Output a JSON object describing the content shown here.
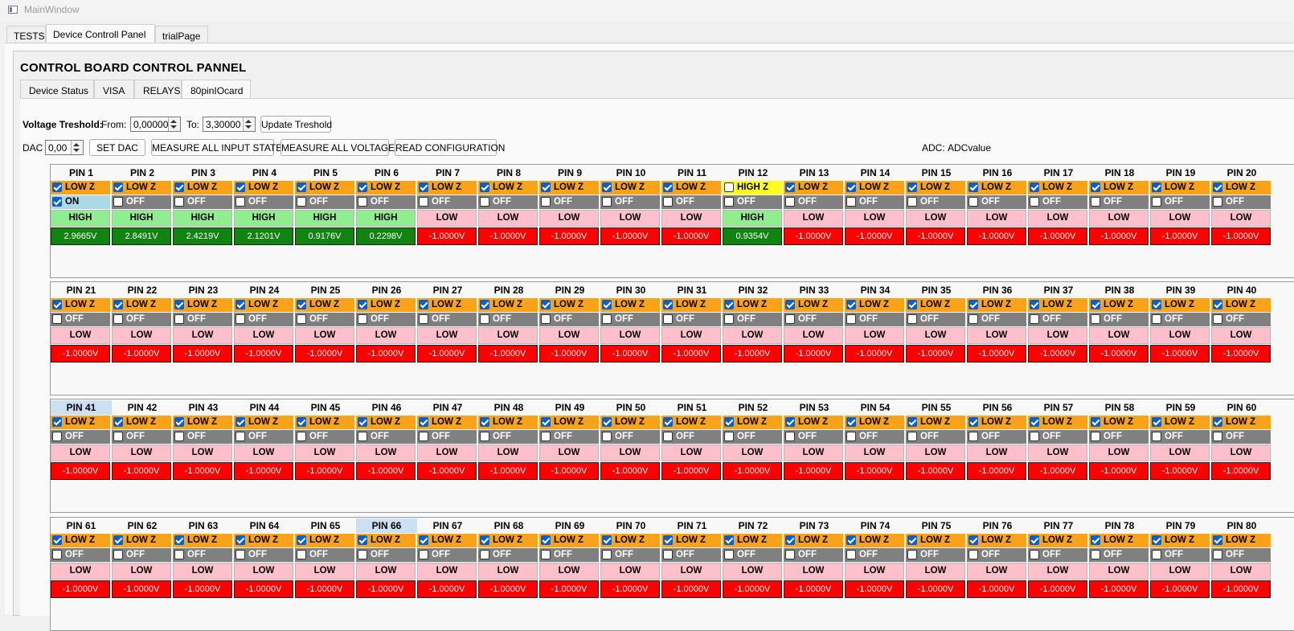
{
  "window": {
    "title": "MainWindow"
  },
  "outer_tabs": [
    {
      "label": "TESTS",
      "active": false
    },
    {
      "label": "Device Controll Panel",
      "active": true
    },
    {
      "label": "trialPage",
      "active": false
    }
  ],
  "panel": {
    "title": "CONTROL BOARD CONTROL PANNEL"
  },
  "inner_tabs": [
    {
      "label": "Device Status",
      "active": false
    },
    {
      "label": "VISA",
      "active": false
    },
    {
      "label": "RELAYS",
      "active": false
    },
    {
      "label": "80pinIOcard",
      "active": true
    }
  ],
  "threshold": {
    "label": "Voltage Treshold:",
    "from_label": "From:",
    "from_value": "0,00000",
    "to_label": "To:",
    "to_value": "3,30000",
    "update_label": "Update Treshold"
  },
  "dac": {
    "label": "DAC",
    "value": "0,00",
    "set_label": "SET DAC",
    "measure_states_label": "MEASURE ALL INPUT STATES",
    "measure_voltages_label": "MEASURE ALL VOLTAGES",
    "read_config_label": "READ CONFIGURATION",
    "adc_label": "ADC:",
    "adc_value": "ADCvalue"
  },
  "pins": [
    {
      "name": "PIN 1",
      "mode": "LOW Z",
      "mode_checked": true,
      "output": "ON",
      "output_checked": true,
      "state": "HIGH",
      "voltage": "2.9665V"
    },
    {
      "name": "PIN 2",
      "mode": "LOW Z",
      "mode_checked": true,
      "output": "OFF",
      "output_checked": false,
      "state": "HIGH",
      "voltage": "2.8491V"
    },
    {
      "name": "PIN 3",
      "mode": "LOW Z",
      "mode_checked": true,
      "output": "OFF",
      "output_checked": false,
      "state": "HIGH",
      "voltage": "2.4219V"
    },
    {
      "name": "PIN 4",
      "mode": "LOW Z",
      "mode_checked": true,
      "output": "OFF",
      "output_checked": false,
      "state": "HIGH",
      "voltage": "2.1201V"
    },
    {
      "name": "PIN 5",
      "mode": "LOW Z",
      "mode_checked": true,
      "output": "OFF",
      "output_checked": false,
      "state": "HIGH",
      "voltage": "0.9176V"
    },
    {
      "name": "PIN 6",
      "mode": "LOW Z",
      "mode_checked": true,
      "output": "OFF",
      "output_checked": false,
      "state": "HIGH",
      "voltage": "0.2298V"
    },
    {
      "name": "PIN 7",
      "mode": "LOW Z",
      "mode_checked": true,
      "output": "OFF",
      "output_checked": false,
      "state": "LOW",
      "voltage": "-1.0000V"
    },
    {
      "name": "PIN 8",
      "mode": "LOW Z",
      "mode_checked": true,
      "output": "OFF",
      "output_checked": false,
      "state": "LOW",
      "voltage": "-1.0000V"
    },
    {
      "name": "PIN 9",
      "mode": "LOW Z",
      "mode_checked": true,
      "output": "OFF",
      "output_checked": false,
      "state": "LOW",
      "voltage": "-1.0000V"
    },
    {
      "name": "PIN 10",
      "mode": "LOW Z",
      "mode_checked": true,
      "output": "OFF",
      "output_checked": false,
      "state": "LOW",
      "voltage": "-1.0000V"
    },
    {
      "name": "PIN 11",
      "mode": "LOW Z",
      "mode_checked": true,
      "output": "OFF",
      "output_checked": false,
      "state": "LOW",
      "voltage": "-1.0000V"
    },
    {
      "name": "PIN 12",
      "mode": "HIGH Z",
      "mode_checked": false,
      "output": "OFF",
      "output_checked": false,
      "state": "HIGH",
      "voltage": "0.9354V"
    },
    {
      "name": "PIN 13",
      "mode": "LOW Z",
      "mode_checked": true,
      "output": "OFF",
      "output_checked": false,
      "state": "LOW",
      "voltage": "-1.0000V"
    },
    {
      "name": "PIN 14",
      "mode": "LOW Z",
      "mode_checked": true,
      "output": "OFF",
      "output_checked": false,
      "state": "LOW",
      "voltage": "-1.0000V"
    },
    {
      "name": "PIN 15",
      "mode": "LOW Z",
      "mode_checked": true,
      "output": "OFF",
      "output_checked": false,
      "state": "LOW",
      "voltage": "-1.0000V"
    },
    {
      "name": "PIN 16",
      "mode": "LOW Z",
      "mode_checked": true,
      "output": "OFF",
      "output_checked": false,
      "state": "LOW",
      "voltage": "-1.0000V"
    },
    {
      "name": "PIN 17",
      "mode": "LOW Z",
      "mode_checked": true,
      "output": "OFF",
      "output_checked": false,
      "state": "LOW",
      "voltage": "-1.0000V"
    },
    {
      "name": "PIN 18",
      "mode": "LOW Z",
      "mode_checked": true,
      "output": "OFF",
      "output_checked": false,
      "state": "LOW",
      "voltage": "-1.0000V"
    },
    {
      "name": "PIN 19",
      "mode": "LOW Z",
      "mode_checked": true,
      "output": "OFF",
      "output_checked": false,
      "state": "LOW",
      "voltage": "-1.0000V"
    },
    {
      "name": "PIN 20",
      "mode": "LOW Z",
      "mode_checked": true,
      "output": "OFF",
      "output_checked": false,
      "state": "LOW",
      "voltage": "-1.0000V"
    },
    {
      "name": "PIN 21",
      "mode": "LOW Z",
      "mode_checked": true,
      "output": "OFF",
      "output_checked": false,
      "state": "LOW",
      "voltage": "-1.0000V"
    },
    {
      "name": "PIN 22",
      "mode": "LOW Z",
      "mode_checked": true,
      "output": "OFF",
      "output_checked": false,
      "state": "LOW",
      "voltage": "-1.0000V"
    },
    {
      "name": "PIN 23",
      "mode": "LOW Z",
      "mode_checked": true,
      "output": "OFF",
      "output_checked": false,
      "state": "LOW",
      "voltage": "-1.0000V"
    },
    {
      "name": "PIN 24",
      "mode": "LOW Z",
      "mode_checked": true,
      "output": "OFF",
      "output_checked": false,
      "state": "LOW",
      "voltage": "-1.0000V"
    },
    {
      "name": "PIN 25",
      "mode": "LOW Z",
      "mode_checked": true,
      "output": "OFF",
      "output_checked": false,
      "state": "LOW",
      "voltage": "-1.0000V"
    },
    {
      "name": "PIN 26",
      "mode": "LOW Z",
      "mode_checked": true,
      "output": "OFF",
      "output_checked": false,
      "state": "LOW",
      "voltage": "-1.0000V"
    },
    {
      "name": "PIN 27",
      "mode": "LOW Z",
      "mode_checked": true,
      "output": "OFF",
      "output_checked": false,
      "state": "LOW",
      "voltage": "-1.0000V"
    },
    {
      "name": "PIN 28",
      "mode": "LOW Z",
      "mode_checked": true,
      "output": "OFF",
      "output_checked": false,
      "state": "LOW",
      "voltage": "-1.0000V"
    },
    {
      "name": "PIN 29",
      "mode": "LOW Z",
      "mode_checked": true,
      "output": "OFF",
      "output_checked": false,
      "state": "LOW",
      "voltage": "-1.0000V"
    },
    {
      "name": "PIN 30",
      "mode": "LOW Z",
      "mode_checked": true,
      "output": "OFF",
      "output_checked": false,
      "state": "LOW",
      "voltage": "-1.0000V"
    },
    {
      "name": "PIN 31",
      "mode": "LOW Z",
      "mode_checked": true,
      "output": "OFF",
      "output_checked": false,
      "state": "LOW",
      "voltage": "-1.0000V"
    },
    {
      "name": "PIN 32",
      "mode": "LOW Z",
      "mode_checked": true,
      "output": "OFF",
      "output_checked": false,
      "state": "LOW",
      "voltage": "-1.0000V"
    },
    {
      "name": "PIN 33",
      "mode": "LOW Z",
      "mode_checked": true,
      "output": "OFF",
      "output_checked": false,
      "state": "LOW",
      "voltage": "-1.0000V"
    },
    {
      "name": "PIN 34",
      "mode": "LOW Z",
      "mode_checked": true,
      "output": "OFF",
      "output_checked": false,
      "state": "LOW",
      "voltage": "-1.0000V"
    },
    {
      "name": "PIN 35",
      "mode": "LOW Z",
      "mode_checked": true,
      "output": "OFF",
      "output_checked": false,
      "state": "LOW",
      "voltage": "-1.0000V"
    },
    {
      "name": "PIN 36",
      "mode": "LOW Z",
      "mode_checked": true,
      "output": "OFF",
      "output_checked": false,
      "state": "LOW",
      "voltage": "-1.0000V"
    },
    {
      "name": "PIN 37",
      "mode": "LOW Z",
      "mode_checked": true,
      "output": "OFF",
      "output_checked": false,
      "state": "LOW",
      "voltage": "-1.0000V"
    },
    {
      "name": "PIN 38",
      "mode": "LOW Z",
      "mode_checked": true,
      "output": "OFF",
      "output_checked": false,
      "state": "LOW",
      "voltage": "-1.0000V"
    },
    {
      "name": "PIN 39",
      "mode": "LOW Z",
      "mode_checked": true,
      "output": "OFF",
      "output_checked": false,
      "state": "LOW",
      "voltage": "-1.0000V"
    },
    {
      "name": "PIN 40",
      "mode": "LOW Z",
      "mode_checked": true,
      "output": "OFF",
      "output_checked": false,
      "state": "LOW",
      "voltage": "-1.0000V"
    },
    {
      "name": "PIN 41",
      "mode": "LOW Z",
      "mode_checked": true,
      "output": "OFF",
      "output_checked": false,
      "state": "LOW",
      "voltage": "-1.0000V",
      "selected": true
    },
    {
      "name": "PIN 42",
      "mode": "LOW Z",
      "mode_checked": true,
      "output": "OFF",
      "output_checked": false,
      "state": "LOW",
      "voltage": "-1.0000V"
    },
    {
      "name": "PIN 43",
      "mode": "LOW Z",
      "mode_checked": true,
      "output": "OFF",
      "output_checked": false,
      "state": "LOW",
      "voltage": "-1.0000V"
    },
    {
      "name": "PIN 44",
      "mode": "LOW Z",
      "mode_checked": true,
      "output": "OFF",
      "output_checked": false,
      "state": "LOW",
      "voltage": "-1.0000V"
    },
    {
      "name": "PIN 45",
      "mode": "LOW Z",
      "mode_checked": true,
      "output": "OFF",
      "output_checked": false,
      "state": "LOW",
      "voltage": "-1.0000V"
    },
    {
      "name": "PIN 46",
      "mode": "LOW Z",
      "mode_checked": true,
      "output": "OFF",
      "output_checked": false,
      "state": "LOW",
      "voltage": "-1.0000V"
    },
    {
      "name": "PIN 47",
      "mode": "LOW Z",
      "mode_checked": true,
      "output": "OFF",
      "output_checked": false,
      "state": "LOW",
      "voltage": "-1.0000V"
    },
    {
      "name": "PIN 48",
      "mode": "LOW Z",
      "mode_checked": true,
      "output": "OFF",
      "output_checked": false,
      "state": "LOW",
      "voltage": "-1.0000V"
    },
    {
      "name": "PIN 49",
      "mode": "LOW Z",
      "mode_checked": true,
      "output": "OFF",
      "output_checked": false,
      "state": "LOW",
      "voltage": "-1.0000V"
    },
    {
      "name": "PIN 50",
      "mode": "LOW Z",
      "mode_checked": true,
      "output": "OFF",
      "output_checked": false,
      "state": "LOW",
      "voltage": "-1.0000V"
    },
    {
      "name": "PIN 51",
      "mode": "LOW Z",
      "mode_checked": true,
      "output": "OFF",
      "output_checked": false,
      "state": "LOW",
      "voltage": "-1.0000V"
    },
    {
      "name": "PIN 52",
      "mode": "LOW Z",
      "mode_checked": true,
      "output": "OFF",
      "output_checked": false,
      "state": "LOW",
      "voltage": "-1.0000V"
    },
    {
      "name": "PIN 53",
      "mode": "LOW Z",
      "mode_checked": true,
      "output": "OFF",
      "output_checked": false,
      "state": "LOW",
      "voltage": "-1.0000V"
    },
    {
      "name": "PIN 54",
      "mode": "LOW Z",
      "mode_checked": true,
      "output": "OFF",
      "output_checked": false,
      "state": "LOW",
      "voltage": "-1.0000V"
    },
    {
      "name": "PIN 55",
      "mode": "LOW Z",
      "mode_checked": true,
      "output": "OFF",
      "output_checked": false,
      "state": "LOW",
      "voltage": "-1.0000V"
    },
    {
      "name": "PIN 56",
      "mode": "LOW Z",
      "mode_checked": true,
      "output": "OFF",
      "output_checked": false,
      "state": "LOW",
      "voltage": "-1.0000V"
    },
    {
      "name": "PIN 57",
      "mode": "LOW Z",
      "mode_checked": true,
      "output": "OFF",
      "output_checked": false,
      "state": "LOW",
      "voltage": "-1.0000V"
    },
    {
      "name": "PIN 58",
      "mode": "LOW Z",
      "mode_checked": true,
      "output": "OFF",
      "output_checked": false,
      "state": "LOW",
      "voltage": "-1.0000V"
    },
    {
      "name": "PIN 59",
      "mode": "LOW Z",
      "mode_checked": true,
      "output": "OFF",
      "output_checked": false,
      "state": "LOW",
      "voltage": "-1.0000V"
    },
    {
      "name": "PIN 60",
      "mode": "LOW Z",
      "mode_checked": true,
      "output": "OFF",
      "output_checked": false,
      "state": "LOW",
      "voltage": "-1.0000V"
    },
    {
      "name": "PIN 61",
      "mode": "LOW Z",
      "mode_checked": true,
      "output": "OFF",
      "output_checked": false,
      "state": "LOW",
      "voltage": "-1.0000V"
    },
    {
      "name": "PIN 62",
      "mode": "LOW Z",
      "mode_checked": true,
      "output": "OFF",
      "output_checked": false,
      "state": "LOW",
      "voltage": "-1.0000V"
    },
    {
      "name": "PIN 63",
      "mode": "LOW Z",
      "mode_checked": true,
      "output": "OFF",
      "output_checked": false,
      "state": "LOW",
      "voltage": "-1.0000V"
    },
    {
      "name": "PIN 64",
      "mode": "LOW Z",
      "mode_checked": true,
      "output": "OFF",
      "output_checked": false,
      "state": "LOW",
      "voltage": "-1.0000V"
    },
    {
      "name": "PIN 65",
      "mode": "LOW Z",
      "mode_checked": true,
      "output": "OFF",
      "output_checked": false,
      "state": "LOW",
      "voltage": "-1.0000V"
    },
    {
      "name": "PIN 66",
      "mode": "LOW Z",
      "mode_checked": true,
      "output": "OFF",
      "output_checked": false,
      "state": "LOW",
      "voltage": "-1.0000V",
      "selected": true
    },
    {
      "name": "PIN 67",
      "mode": "LOW Z",
      "mode_checked": true,
      "output": "OFF",
      "output_checked": false,
      "state": "LOW",
      "voltage": "-1.0000V"
    },
    {
      "name": "PIN 68",
      "mode": "LOW Z",
      "mode_checked": true,
      "output": "OFF",
      "output_checked": false,
      "state": "LOW",
      "voltage": "-1.0000V"
    },
    {
      "name": "PIN 69",
      "mode": "LOW Z",
      "mode_checked": true,
      "output": "OFF",
      "output_checked": false,
      "state": "LOW",
      "voltage": "-1.0000V"
    },
    {
      "name": "PIN 70",
      "mode": "LOW Z",
      "mode_checked": true,
      "output": "OFF",
      "output_checked": false,
      "state": "LOW",
      "voltage": "-1.0000V"
    },
    {
      "name": "PIN 71",
      "mode": "LOW Z",
      "mode_checked": true,
      "output": "OFF",
      "output_checked": false,
      "state": "LOW",
      "voltage": "-1.0000V"
    },
    {
      "name": "PIN 72",
      "mode": "LOW Z",
      "mode_checked": true,
      "output": "OFF",
      "output_checked": false,
      "state": "LOW",
      "voltage": "-1.0000V"
    },
    {
      "name": "PIN 73",
      "mode": "LOW Z",
      "mode_checked": true,
      "output": "OFF",
      "output_checked": false,
      "state": "LOW",
      "voltage": "-1.0000V"
    },
    {
      "name": "PIN 74",
      "mode": "LOW Z",
      "mode_checked": true,
      "output": "OFF",
      "output_checked": false,
      "state": "LOW",
      "voltage": "-1.0000V"
    },
    {
      "name": "PIN 75",
      "mode": "LOW Z",
      "mode_checked": true,
      "output": "OFF",
      "output_checked": false,
      "state": "LOW",
      "voltage": "-1.0000V"
    },
    {
      "name": "PIN 76",
      "mode": "LOW Z",
      "mode_checked": true,
      "output": "OFF",
      "output_checked": false,
      "state": "LOW",
      "voltage": "-1.0000V"
    },
    {
      "name": "PIN 77",
      "mode": "LOW Z",
      "mode_checked": true,
      "output": "OFF",
      "output_checked": false,
      "state": "LOW",
      "voltage": "-1.0000V"
    },
    {
      "name": "PIN 78",
      "mode": "LOW Z",
      "mode_checked": true,
      "output": "OFF",
      "output_checked": false,
      "state": "LOW",
      "voltage": "-1.0000V"
    },
    {
      "name": "PIN 79",
      "mode": "LOW Z",
      "mode_checked": true,
      "output": "OFF",
      "output_checked": false,
      "state": "LOW",
      "voltage": "-1.0000V"
    },
    {
      "name": "PIN 80",
      "mode": "LOW Z",
      "mode_checked": true,
      "output": "OFF",
      "output_checked": false,
      "state": "LOW",
      "voltage": "-1.0000V"
    }
  ]
}
